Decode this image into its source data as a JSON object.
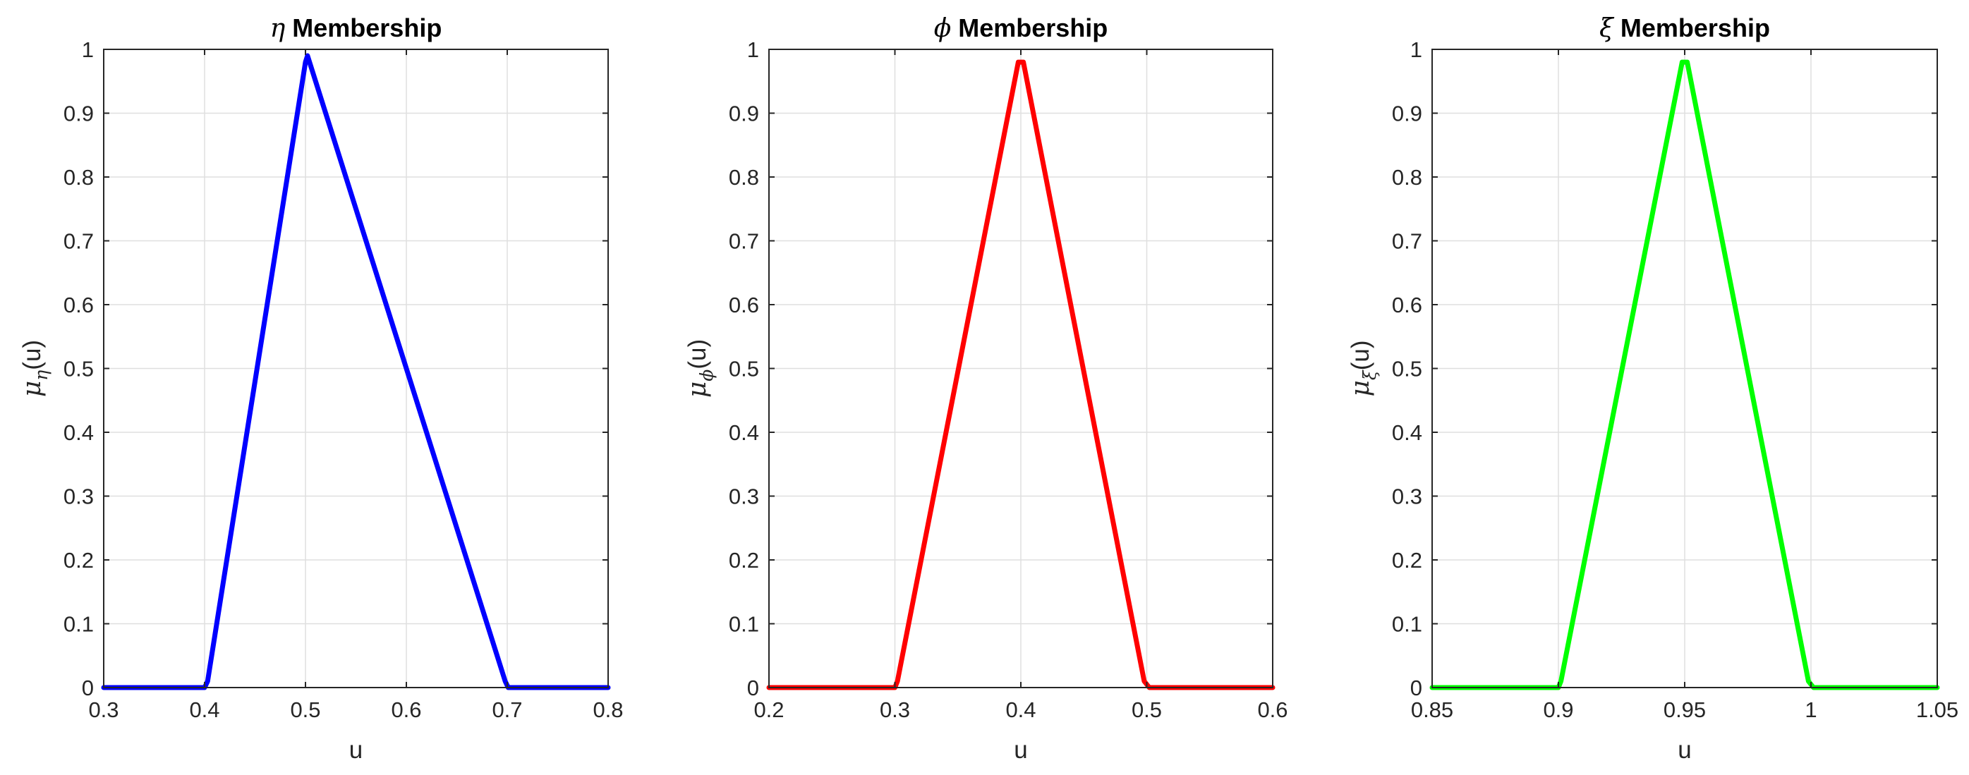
{
  "chart_data": [
    {
      "type": "line",
      "title": {
        "symbol": "η",
        "text": "Membership"
      },
      "xlabel": "u",
      "ylabel": {
        "mu": "μ",
        "sub": "η",
        "rest": "(u)"
      },
      "xlim": [
        0.3,
        0.8
      ],
      "ylim": [
        0,
        1
      ],
      "xticks": [
        "0.3",
        "0.4",
        "0.5",
        "0.6",
        "0.7",
        "0.8"
      ],
      "yticks": [
        "0",
        "0.1",
        "0.2",
        "0.3",
        "0.4",
        "0.5",
        "0.6",
        "0.7",
        "0.8",
        "0.9",
        "1"
      ],
      "grid": true,
      "color": "#0000ff",
      "x": [
        0.3,
        0.4,
        0.403,
        0.5,
        0.502,
        0.698,
        0.701,
        0.8
      ],
      "y": [
        0,
        0,
        0.01,
        0.98,
        0.99,
        0.01,
        0,
        0
      ]
    },
    {
      "type": "line",
      "title": {
        "symbol": "ϕ",
        "text": "Membership"
      },
      "xlabel": "u",
      "ylabel": {
        "mu": "μ",
        "sub": "ϕ",
        "rest": "(u)"
      },
      "xlim": [
        0.2,
        0.6
      ],
      "ylim": [
        0,
        1
      ],
      "xticks": [
        "0.2",
        "0.3",
        "0.4",
        "0.5",
        "0.6"
      ],
      "yticks": [
        "0",
        "0.1",
        "0.2",
        "0.3",
        "0.4",
        "0.5",
        "0.6",
        "0.7",
        "0.8",
        "0.9",
        "1"
      ],
      "grid": true,
      "color": "#ff0000",
      "x": [
        0.2,
        0.3,
        0.302,
        0.398,
        0.402,
        0.498,
        0.502,
        0.6
      ],
      "y": [
        0,
        0,
        0.01,
        0.98,
        0.98,
        0.01,
        0,
        0
      ]
    },
    {
      "type": "line",
      "title": {
        "symbol": "ξ",
        "text": "Membership"
      },
      "xlabel": "u",
      "ylabel": {
        "mu": "μ",
        "sub": "ξ",
        "rest": "(u)"
      },
      "xlim": [
        0.85,
        1.05
      ],
      "ylim": [
        0,
        1
      ],
      "xticks": [
        "0.85",
        "0.9",
        "0.95",
        "1",
        "1.05"
      ],
      "yticks": [
        "0",
        "0.1",
        "0.2",
        "0.3",
        "0.4",
        "0.5",
        "0.6",
        "0.7",
        "0.8",
        "0.9",
        "1"
      ],
      "grid": true,
      "color": "#00ff00",
      "x": [
        0.85,
        0.9,
        0.901,
        0.949,
        0.951,
        0.999,
        1.001,
        1.05
      ],
      "y": [
        0,
        0,
        0.01,
        0.98,
        0.98,
        0.01,
        0,
        0
      ]
    }
  ]
}
